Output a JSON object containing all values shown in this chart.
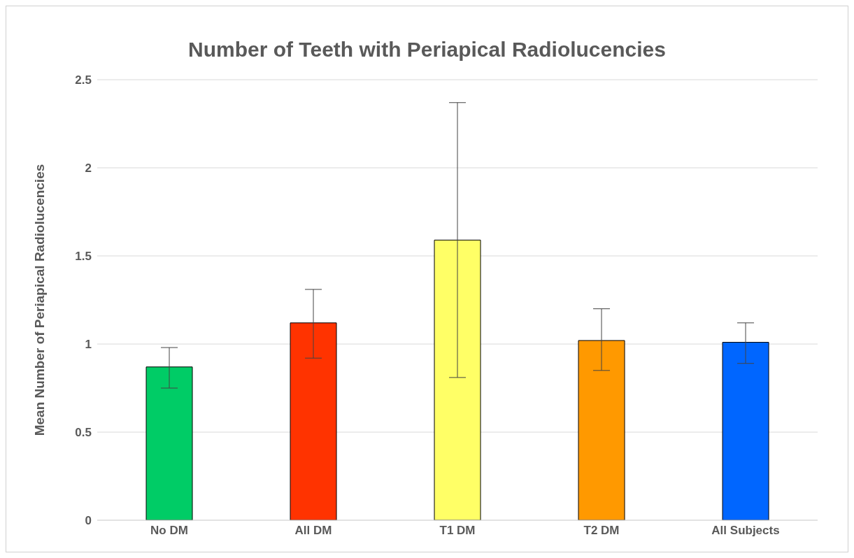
{
  "chart_data": {
    "type": "bar",
    "title": "Number of Teeth with Periapical Radiolucencies",
    "ylabel": "Mean Number of Periapical Radiolucencies",
    "categories": [
      "No DM",
      "All DM",
      "T1 DM",
      "T2 DM",
      "All Subjects"
    ],
    "values": [
      0.87,
      1.12,
      1.59,
      1.02,
      1.01
    ],
    "colors": [
      "#00cc66",
      "#ff3300",
      "#ffff66",
      "#ff9900",
      "#0066ff"
    ],
    "errors": [
      [
        0.75,
        0.98
      ],
      [
        0.92,
        1.31
      ],
      [
        0.81,
        2.37
      ],
      [
        0.85,
        1.2
      ],
      [
        0.89,
        1.12
      ]
    ],
    "ylim": [
      0,
      2.5
    ],
    "yticks": [
      0,
      0.5,
      1,
      1.5,
      2,
      2.5
    ],
    "grid": "y"
  }
}
